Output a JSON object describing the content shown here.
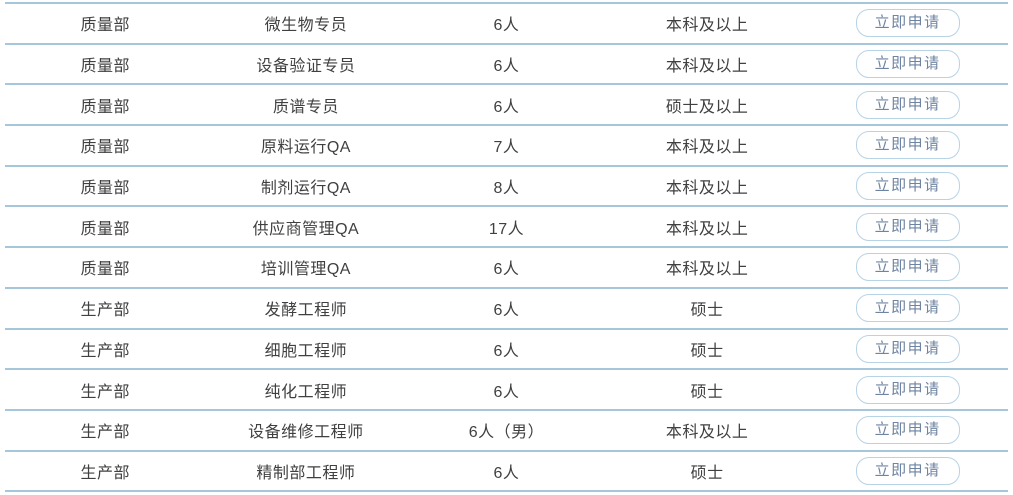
{
  "table": {
    "apply_label": "立即申请",
    "colors": {
      "divider": "#a5c6db",
      "text": "#404040",
      "button_border": "#b7d3e6",
      "button_text": "#6e84a2"
    },
    "rows": [
      {
        "department": "质量部",
        "position": "微生物专员",
        "headcount": "6人",
        "education": "本科及以上"
      },
      {
        "department": "质量部",
        "position": "设备验证专员",
        "headcount": "6人",
        "education": "本科及以上"
      },
      {
        "department": "质量部",
        "position": "质谱专员",
        "headcount": "6人",
        "education": "硕士及以上"
      },
      {
        "department": "质量部",
        "position": "原料运行QA",
        "headcount": "7人",
        "education": "本科及以上"
      },
      {
        "department": "质量部",
        "position": "制剂运行QA",
        "headcount": "8人",
        "education": "本科及以上"
      },
      {
        "department": "质量部",
        "position": "供应商管理QA",
        "headcount": "17人",
        "education": "本科及以上"
      },
      {
        "department": "质量部",
        "position": "培训管理QA",
        "headcount": "6人",
        "education": "本科及以上"
      },
      {
        "department": "生产部",
        "position": "发酵工程师",
        "headcount": "6人",
        "education": "硕士"
      },
      {
        "department": "生产部",
        "position": "细胞工程师",
        "headcount": "6人",
        "education": "硕士"
      },
      {
        "department": "生产部",
        "position": "纯化工程师",
        "headcount": "6人",
        "education": "硕士"
      },
      {
        "department": "生产部",
        "position": "设备维修工程师",
        "headcount": "6人（男）",
        "education": "本科及以上"
      },
      {
        "department": "生产部",
        "position": "精制部工程师",
        "headcount": "6人",
        "education": "硕士"
      }
    ]
  }
}
